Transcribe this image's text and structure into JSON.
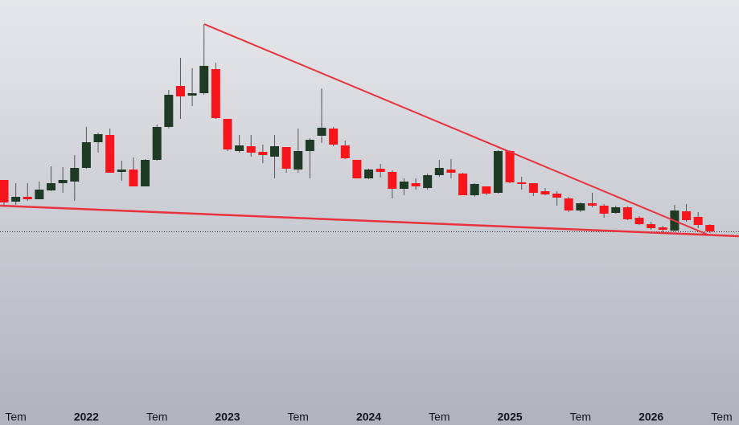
{
  "chart_data": {
    "type": "candlestick",
    "categories": [
      null,
      "Tem",
      null,
      null,
      null,
      null,
      null,
      "2022",
      null,
      null,
      null,
      null,
      null,
      "Tem",
      null,
      null,
      null,
      null,
      null,
      "2023",
      null,
      null,
      null,
      null,
      null,
      "Tem",
      null,
      null,
      null,
      null,
      null,
      "2024",
      null,
      null,
      null,
      null,
      null,
      "Tem",
      null,
      null,
      null,
      null,
      null,
      "2025",
      null,
      null,
      null,
      null,
      null,
      "Tem",
      null,
      null,
      null,
      null,
      null,
      "2026",
      null,
      null,
      null,
      null,
      null,
      "Tem"
    ],
    "up_color": "#1f3b26",
    "down_color": "#f7151c",
    "open": [
      305,
      278,
      284,
      281,
      292,
      301,
      303,
      320,
      352,
      361,
      315,
      318,
      297,
      330,
      371,
      422,
      410,
      413,
      443,
      381,
      341,
      347,
      340,
      334,
      346,
      318,
      341,
      360,
      369,
      348,
      330,
      307,
      319,
      315,
      294,
      301,
      295,
      311,
      318,
      313,
      286,
      297,
      289,
      341,
      302,
      301,
      291,
      288,
      282,
      267,
      276,
      273,
      264,
      271,
      258,
      250,
      246,
      242,
      266,
      259,
      249,
      null
    ],
    "high": [
      305,
      301,
      301,
      303,
      322,
      321,
      336,
      371,
      364,
      369,
      329,
      333,
      331,
      374,
      417,
      457,
      444,
      499,
      451,
      381,
      361,
      361,
      349,
      361,
      346,
      369,
      357,
      419,
      371,
      354,
      330,
      319,
      325,
      317,
      307,
      307,
      313,
      330,
      331,
      314,
      301,
      297,
      342,
      342,
      309,
      301,
      295,
      291,
      284,
      277,
      289,
      275,
      273,
      272,
      260,
      253,
      248,
      274,
      275,
      265,
      250,
      null
    ],
    "low": [
      274,
      274,
      279,
      281,
      291,
      289,
      279,
      319,
      339,
      314,
      304,
      297,
      297,
      329,
      369,
      381,
      397,
      411,
      381,
      341,
      339,
      334,
      326,
      307,
      314,
      314,
      307,
      351,
      347,
      331,
      307,
      306,
      308,
      282,
      286,
      293,
      293,
      309,
      307,
      286,
      284,
      286,
      288,
      301,
      293,
      285,
      286,
      273,
      265,
      265,
      271,
      258,
      263,
      255,
      249,
      243,
      240,
      241,
      253,
      245,
      239,
      null
    ],
    "close": [
      277,
      284,
      281,
      293,
      301,
      305,
      320,
      352,
      362,
      314,
      318,
      297,
      330,
      371,
      411,
      409,
      413,
      447,
      382,
      343,
      348,
      339,
      336,
      347,
      319,
      341,
      355,
      370,
      349,
      332,
      307,
      318,
      315,
      294,
      303,
      297,
      311,
      320,
      314,
      286,
      300,
      288,
      341,
      302,
      300,
      289,
      287,
      283,
      267,
      276,
      273,
      263,
      271,
      256,
      250,
      245,
      243,
      267,
      255,
      249,
      241,
      null
    ],
    "ylim": [
      0,
      529
    ]
  }
}
